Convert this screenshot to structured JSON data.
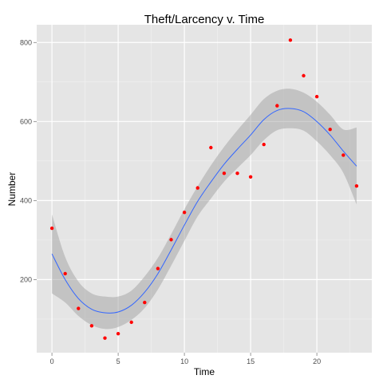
{
  "chart_data": {
    "type": "scatter",
    "title": "Theft/Larcency v. Time",
    "xlabel": "Time",
    "ylabel": "Number",
    "xlim": [
      -1.15,
      24.15
    ],
    "ylim": [
      15,
      845
    ],
    "x_ticks": [
      0,
      5,
      10,
      15,
      20
    ],
    "y_ticks": [
      200,
      400,
      600,
      800
    ],
    "x_tick_labels": [
      "0",
      "5",
      "10",
      "15",
      "20"
    ],
    "y_tick_labels": [
      "200",
      "400",
      "600",
      "800"
    ],
    "grid": true,
    "legend": "none",
    "colors": {
      "panel_background": "#e5e5e5",
      "grid_major": "#ffffff",
      "grid_minor": "#f2f2f2",
      "points": "#ff0000",
      "smooth_line": "#3366ff",
      "confidence_band": "#999999"
    },
    "series": [
      {
        "type": "scatter",
        "x": [
          0,
          1,
          2,
          3,
          4,
          5,
          6,
          7,
          8,
          9,
          10,
          11,
          12,
          13,
          14,
          15,
          16,
          17,
          18,
          19,
          20,
          21,
          22,
          23
        ],
        "y": [
          330,
          215,
          127,
          83,
          52,
          63,
          92,
          142,
          228,
          301,
          370,
          432,
          534,
          469,
          469,
          460,
          542,
          640,
          806,
          716,
          663,
          580,
          515,
          437
        ]
      },
      {
        "type": "smooth",
        "x": [
          0,
          1,
          2,
          3,
          4,
          5,
          6,
          7,
          8,
          9,
          10,
          11,
          12,
          13,
          14,
          15,
          16,
          17,
          18,
          19,
          20,
          21,
          22,
          23
        ],
        "y": [
          265,
          200,
          152,
          125,
          116,
          118,
          135,
          168,
          215,
          275,
          338,
          398,
          447,
          492,
          530,
          566,
          605,
          628,
          633,
          625,
          600,
          566,
          525,
          487
        ],
        "lower": [
          165,
          142,
          108,
          85,
          75,
          80,
          98,
          128,
          175,
          235,
          298,
          360,
          405,
          448,
          482,
          515,
          553,
          578,
          583,
          577,
          550,
          515,
          470,
          390
        ],
        "upper": [
          365,
          257,
          195,
          165,
          157,
          157,
          172,
          208,
          255,
          315,
          378,
          436,
          489,
          536,
          578,
          617,
          657,
          678,
          683,
          673,
          650,
          617,
          580,
          585
        ]
      }
    ]
  }
}
